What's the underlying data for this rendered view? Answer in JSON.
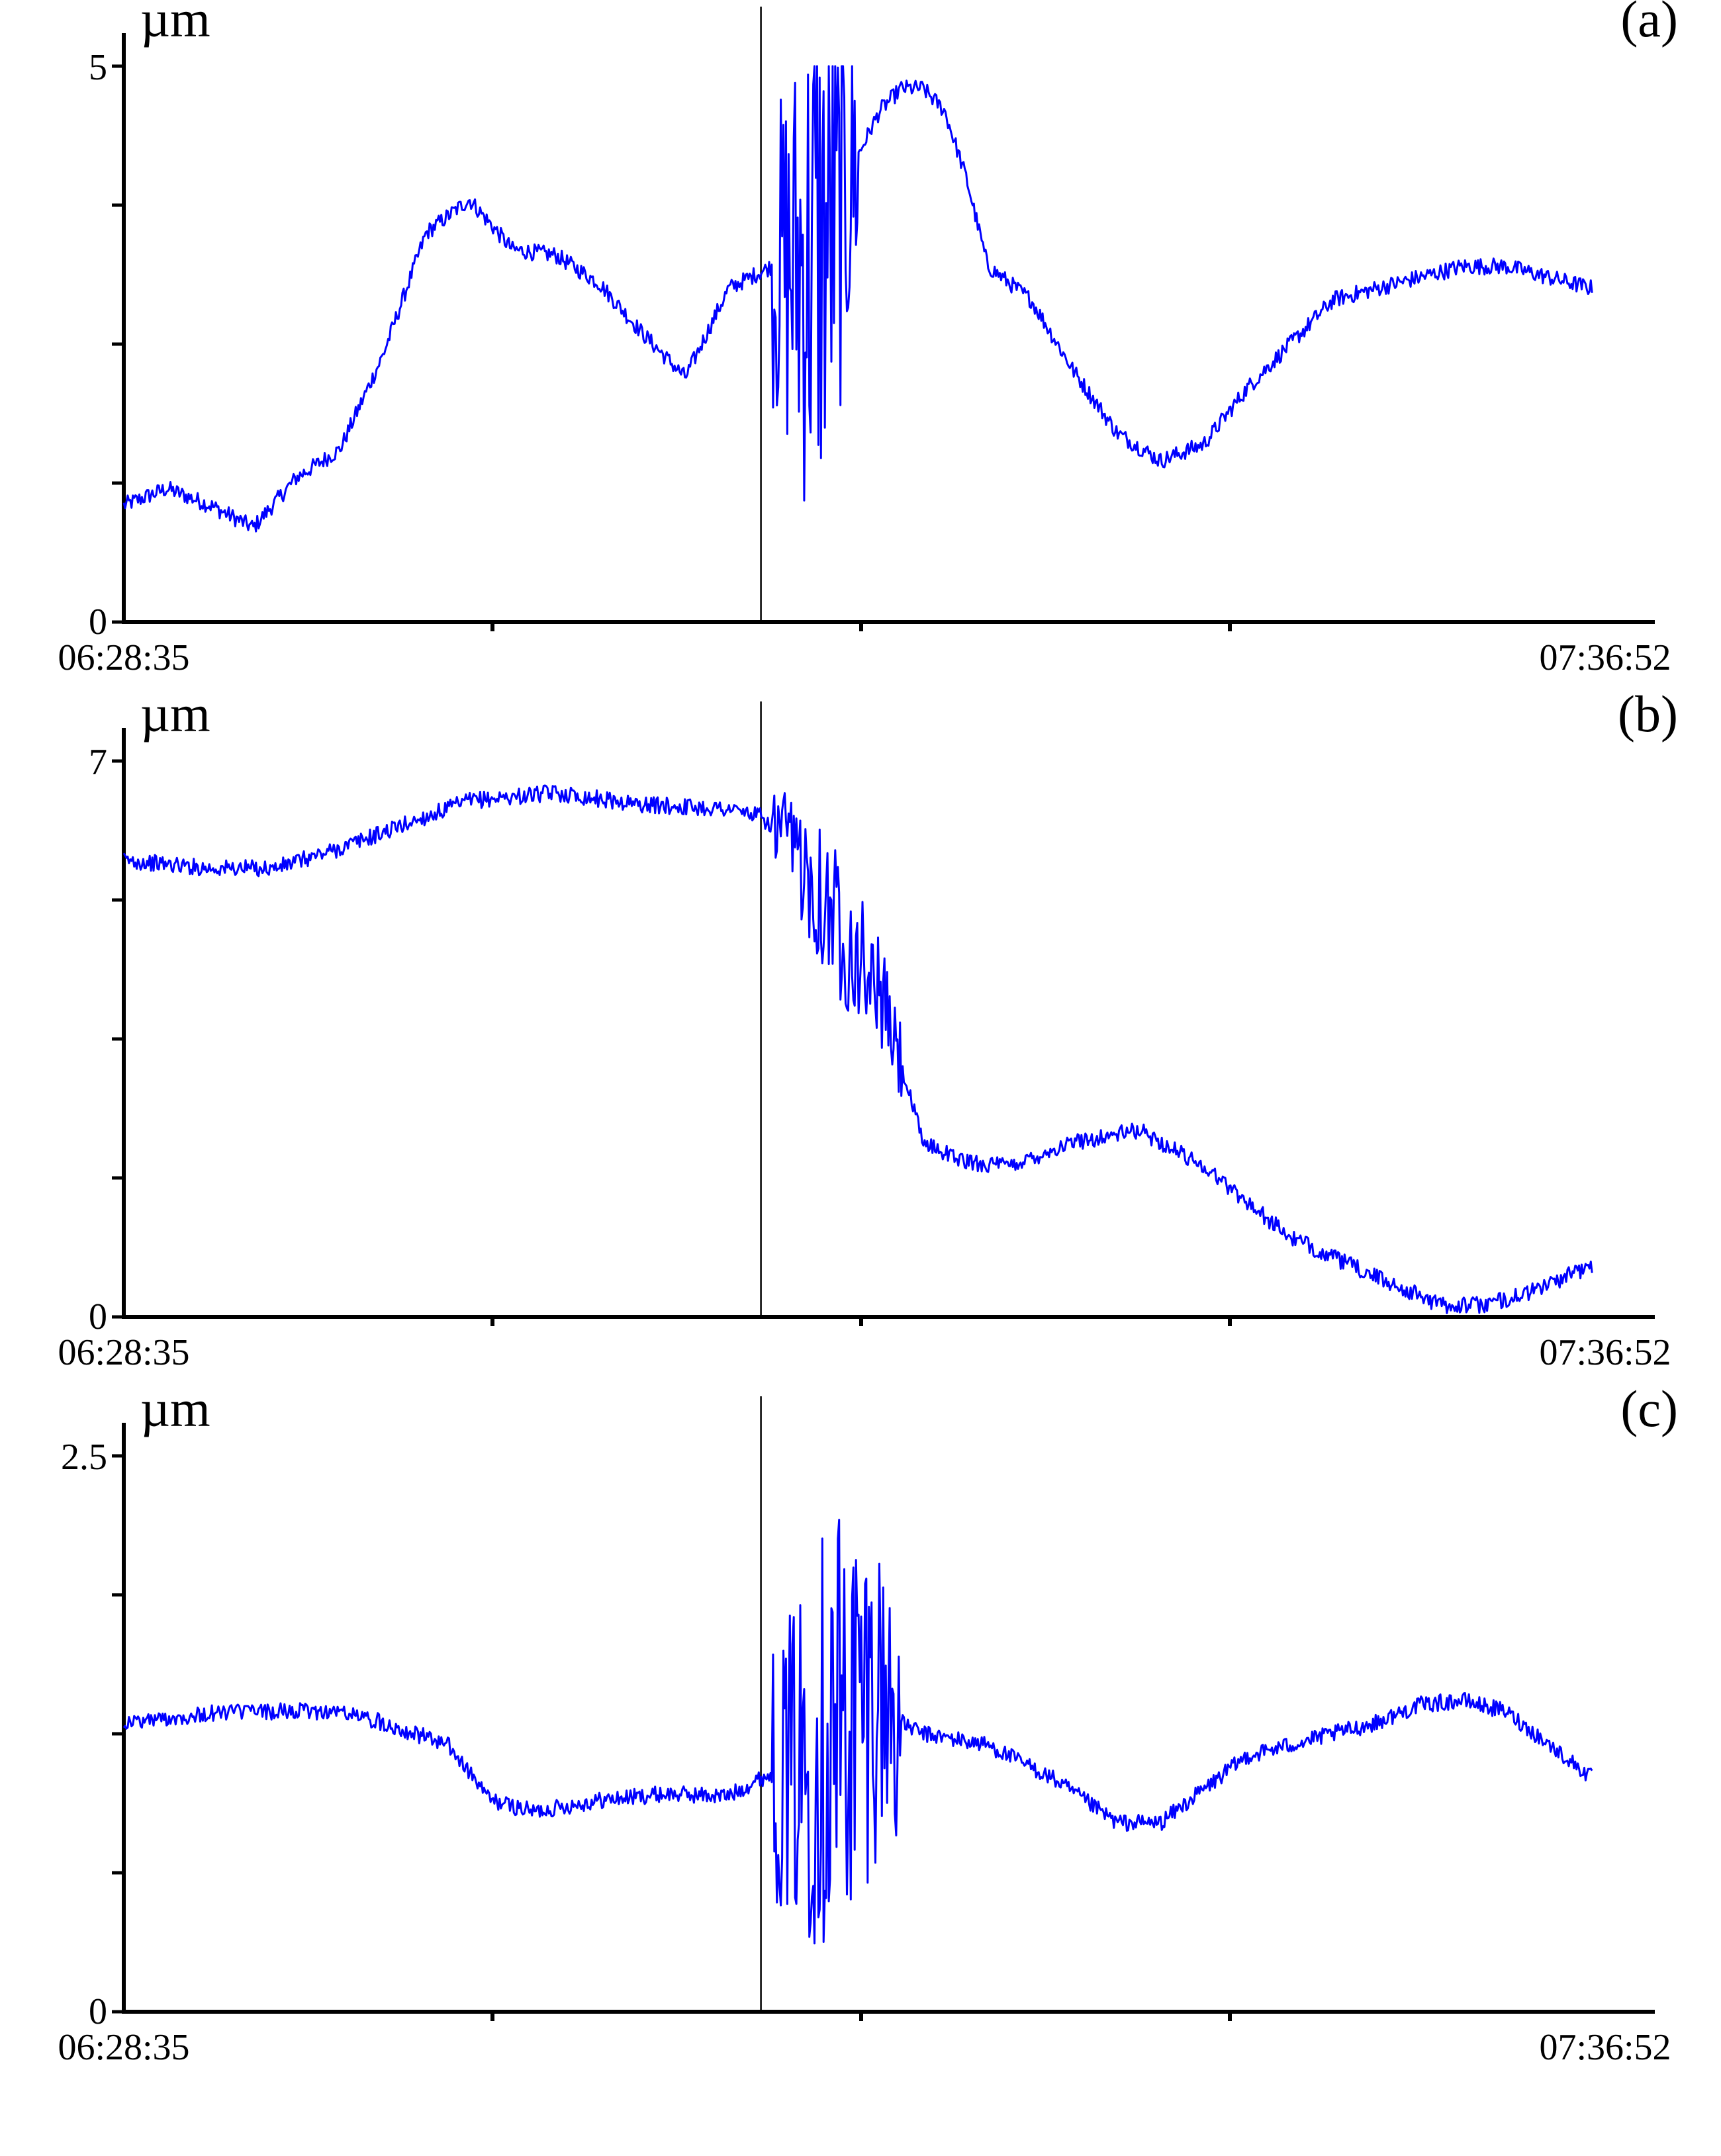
{
  "chart_data": [
    {
      "type": "line",
      "panel_label": "(a)",
      "unit": "µm",
      "y_ticks": [
        "0",
        "5"
      ],
      "ylim": [
        0,
        5
      ],
      "y_minor_step": 1.25,
      "x_start_label": "06:28:35",
      "x_end_label": "07:36:52",
      "x_range_minutes": [
        0,
        68.28
      ],
      "x_minor_step_minutes": 17.07,
      "event_marker_minutes": 29.5,
      "color": "#0000ff",
      "series": [
        {
          "x": [
            0,
            2,
            4,
            6,
            8,
            10,
            12,
            14,
            16,
            18,
            20,
            22,
            24,
            26,
            28,
            30,
            31,
            32,
            33,
            34,
            35,
            36,
            37,
            38,
            39,
            40,
            42,
            44,
            46,
            48,
            50,
            52,
            54,
            56,
            58,
            60,
            62,
            64,
            66,
            68
          ],
          "y": [
            1.05,
            1.2,
            1.05,
            0.85,
            1.3,
            1.55,
            2.4,
            3.5,
            3.8,
            3.35,
            3.3,
            3.05,
            2.6,
            2.2,
            3.0,
            3.2,
            3.2,
            3.3,
            3.6,
            4.2,
            4.6,
            4.8,
            4.8,
            4.6,
            4.0,
            3.2,
            2.9,
            2.25,
            1.7,
            1.45,
            1.6,
            2.1,
            2.5,
            2.9,
            3.0,
            3.1,
            3.2,
            3.2,
            3.1,
            3.0
          ],
          "noise_band": [
            [
              30,
              34,
              2.6
            ]
          ]
        }
      ]
    },
    {
      "type": "line",
      "panel_label": "(b)",
      "unit": "µm",
      "y_ticks": [
        "0",
        "7"
      ],
      "ylim": [
        0,
        7
      ],
      "y_minor_step": 1.75,
      "x_start_label": "06:28:35",
      "x_end_label": "07:36:52",
      "x_range_minutes": [
        0,
        68.28
      ],
      "x_minor_step_minutes": 17.07,
      "event_marker_minutes": 29.5,
      "color": "#0000ff",
      "series": [
        {
          "x": [
            0,
            4,
            7,
            10,
            13,
            16,
            20,
            24,
            28,
            29.5,
            31,
            33,
            35,
            37,
            39,
            41,
            44,
            47,
            50,
            54,
            58,
            61,
            63,
            65,
            68
          ],
          "y": [
            5.75,
            5.65,
            5.65,
            5.9,
            6.2,
            6.5,
            6.6,
            6.45,
            6.4,
            6.3,
            5.9,
            5.0,
            4.1,
            2.2,
            1.95,
            1.9,
            2.2,
            2.35,
            1.9,
            1.0,
            0.5,
            0.15,
            0.15,
            0.3,
            0.65
          ],
          "noise_band": [
            [
              30,
              36,
              1.0
            ]
          ]
        }
      ]
    },
    {
      "type": "line",
      "panel_label": "(c)",
      "unit": "µm",
      "y_ticks": [
        "0",
        "2.5"
      ],
      "ylim": [
        0,
        2.5
      ],
      "y_minor_step": 0.625,
      "x_start_label": "06:28:35",
      "x_end_label": "07:36:52",
      "x_range_minutes": [
        0,
        68.28
      ],
      "x_minor_step_minutes": 17.07,
      "event_marker_minutes": 29.5,
      "color": "#0000ff",
      "series": [
        {
          "x": [
            0,
            5,
            10,
            12,
            15,
            17,
            19,
            22,
            25,
            28,
            29.5,
            31,
            33,
            35,
            36,
            37,
            40,
            43,
            46,
            48,
            50,
            52,
            54,
            56,
            58,
            60,
            62,
            64,
            66,
            68
          ],
          "y": [
            1.3,
            1.35,
            1.35,
            1.3,
            1.2,
            0.95,
            0.9,
            0.95,
            0.98,
            0.97,
            1.05,
            1.1,
            1.3,
            1.45,
            1.3,
            1.25,
            1.2,
            1.05,
            0.85,
            0.85,
            1.0,
            1.15,
            1.2,
            1.25,
            1.3,
            1.38,
            1.4,
            1.35,
            1.2,
            1.05
          ],
          "noise_band": [
            [
              30,
              36,
              1.1
            ]
          ]
        }
      ]
    }
  ]
}
